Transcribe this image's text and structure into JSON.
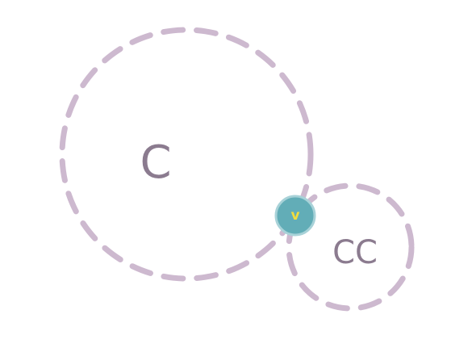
{
  "diagram": {
    "circles": [
      {
        "label": "C"
      },
      {
        "label": "CC"
      }
    ],
    "node": {
      "label": "v"
    }
  },
  "colors": {
    "dash_stroke": "#cdb9cf",
    "label_text": "#8b7b8f",
    "node_fill": "#62adb7",
    "node_stroke": "#a8d2d8",
    "node_text": "#f2dc3c"
  }
}
